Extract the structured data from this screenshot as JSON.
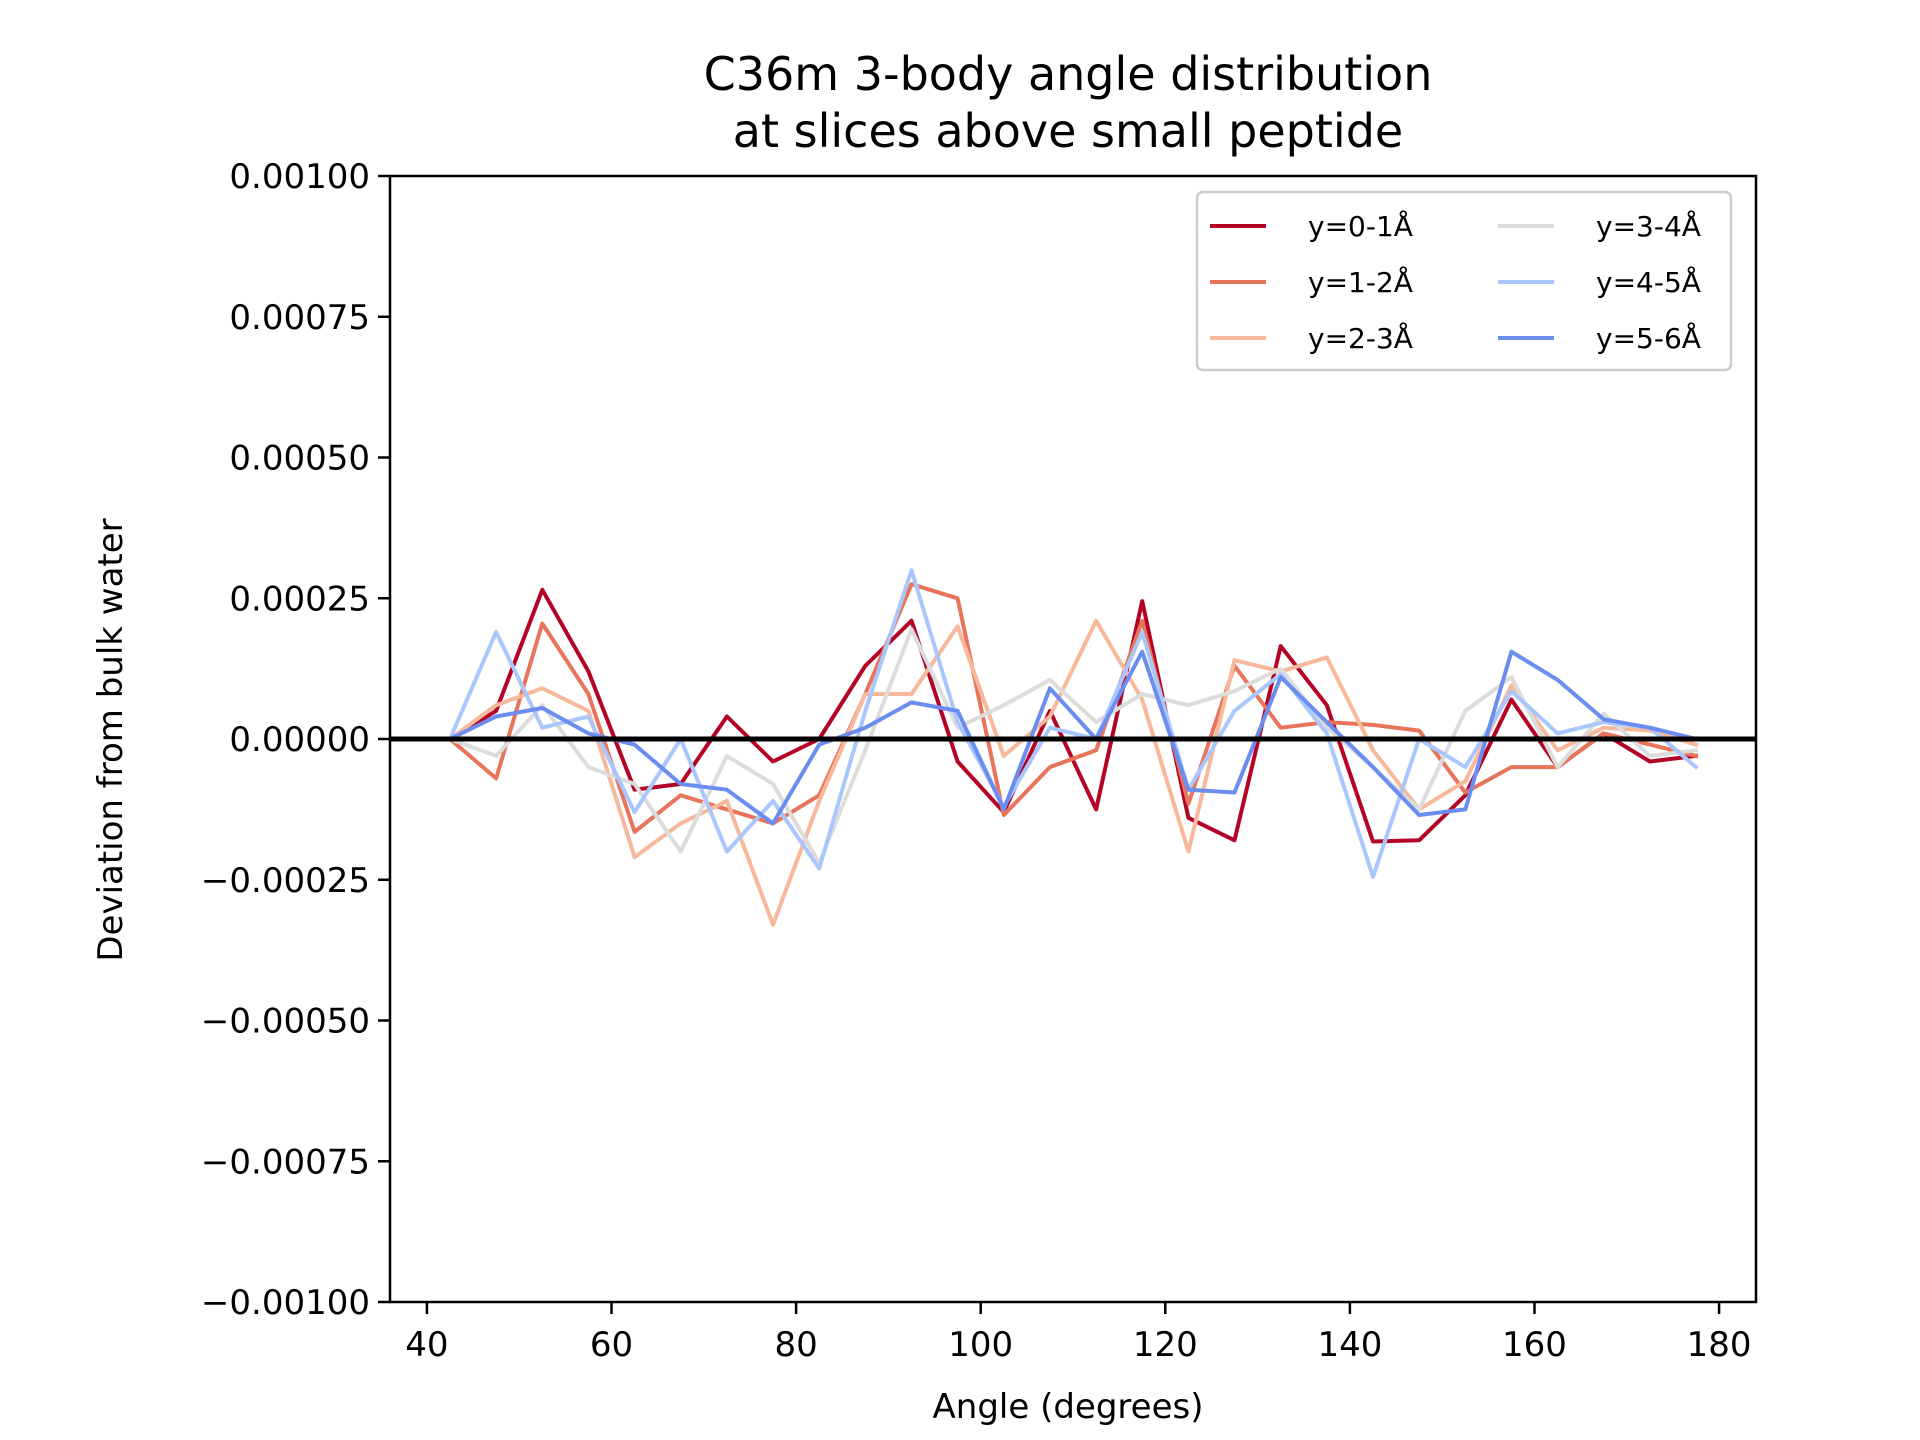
{
  "chart_data": {
    "type": "line",
    "title": [
      "C36m 3-body angle distribution",
      "at slices above small peptide"
    ],
    "xlabel": "Angle (degrees)",
    "ylabel": "Deviation from bulk water",
    "xlim": [
      36,
      184
    ],
    "ylim": [
      -0.001,
      0.001
    ],
    "xticks": [
      40,
      60,
      80,
      100,
      120,
      140,
      160,
      180
    ],
    "xtick_labels": [
      "40",
      "60",
      "80",
      "100",
      "120",
      "140",
      "160",
      "180"
    ],
    "yticks": [
      0.001,
      0.00075,
      0.0005,
      0.00025,
      0,
      -0.00025,
      -0.0005,
      -0.00075,
      -0.001
    ],
    "ytick_labels": [
      "0.00100",
      "0.00075",
      "0.00050",
      "0.00025",
      "0.00000",
      "−0.00025",
      "−0.00050",
      "−0.00075",
      "−0.00100"
    ],
    "grid": false,
    "legend_position": "top-right",
    "legend_columns": 2,
    "baseline": {
      "y": 0,
      "color": "#000000"
    },
    "x": [
      42.5,
      47.5,
      52.5,
      57.5,
      62.5,
      67.5,
      72.5,
      77.5,
      82.5,
      87.5,
      92.5,
      97.5,
      102.5,
      107.5,
      112.5,
      117.5,
      122.5,
      127.5,
      132.5,
      137.5,
      142.5,
      147.5,
      152.5,
      157.5,
      162.5,
      167.5,
      172.5,
      177.5
    ],
    "series": [
      {
        "name": "y=0-1Å",
        "color": "#b40426",
        "values": [
          0.0,
          5e-05,
          0.000265,
          0.00012,
          -9e-05,
          -8e-05,
          4e-05,
          -4e-05,
          0.0,
          0.00013,
          0.00021,
          -4e-05,
          -0.00013,
          5e-05,
          -0.000125,
          0.000245,
          -0.00014,
          -0.00018,
          0.000165,
          6e-05,
          -0.000182,
          -0.00018,
          -0.0001,
          7e-05,
          -5e-05,
          1e-05,
          -4e-05,
          -3e-05
        ]
      },
      {
        "name": "y=1-2Å",
        "color": "#e7745b",
        "values": [
          0.0,
          -7e-05,
          0.000205,
          8e-05,
          -0.000165,
          -0.0001,
          -0.000125,
          -0.00015,
          -0.0001,
          8e-05,
          0.000275,
          0.00025,
          -0.000135,
          -5e-05,
          -2e-05,
          0.00021,
          -0.000115,
          0.00013,
          2e-05,
          3e-05,
          2.5e-05,
          1.5e-05,
          -9.5e-05,
          -5e-05,
          -5e-05,
          1e-05,
          -1e-05,
          -3e-05
        ]
      },
      {
        "name": "y=2-3Å",
        "color": "#f7b89c",
        "values": [
          0.0,
          6e-05,
          9e-05,
          5e-05,
          -0.00021,
          -0.00015,
          -0.00011,
          -0.00033,
          -0.00011,
          8e-05,
          8e-05,
          0.0002,
          -3e-05,
          4e-05,
          0.00021,
          7e-05,
          -0.0002,
          0.00014,
          0.00012,
          0.000145,
          -2e-05,
          -0.000125,
          -7.5e-05,
          9.5e-05,
          -2e-05,
          2e-05,
          1.5e-05,
          -1e-05
        ]
      },
      {
        "name": "y=3-4Å",
        "color": "#dddcdc",
        "values": [
          0.0,
          -3e-05,
          6e-05,
          -5e-05,
          -8e-05,
          -0.0002,
          -3e-05,
          -8e-05,
          -0.00022,
          -2e-05,
          0.000195,
          2e-05,
          6e-05,
          0.000105,
          3e-05,
          8e-05,
          6e-05,
          8.5e-05,
          0.000125,
          2e-05,
          -5e-05,
          -0.000125,
          5e-05,
          0.00011,
          -5e-05,
          4.5e-05,
          -3e-05,
          -2e-05
        ]
      },
      {
        "name": "y=4-5Å",
        "color": "#aac7fd",
        "values": [
          0.0,
          0.00019,
          2e-05,
          4e-05,
          -0.00013,
          0.0,
          -0.0002,
          -0.00011,
          -0.00023,
          5e-05,
          0.0003,
          3e-05,
          -0.00012,
          2e-05,
          0.0,
          0.00019,
          -9e-05,
          5e-05,
          0.000115,
          1e-05,
          -0.000245,
          0.0,
          -5e-05,
          8.5e-05,
          1e-05,
          3e-05,
          2e-05,
          -5e-05
        ]
      },
      {
        "name": "y=5-6Å",
        "color": "#6b8df0",
        "values": [
          0.0,
          4e-05,
          5.5e-05,
          1e-05,
          -1e-05,
          -8e-05,
          -9e-05,
          -0.00015,
          -1e-05,
          2e-05,
          6.5e-05,
          5e-05,
          -0.000125,
          9e-05,
          0.0,
          0.000155,
          -9e-05,
          -9.5e-05,
          0.00011,
          3e-05,
          -5e-05,
          -0.000135,
          -0.000125,
          0.000155,
          0.000105,
          3.5e-05,
          2e-05,
          0.0
        ]
      }
    ]
  }
}
